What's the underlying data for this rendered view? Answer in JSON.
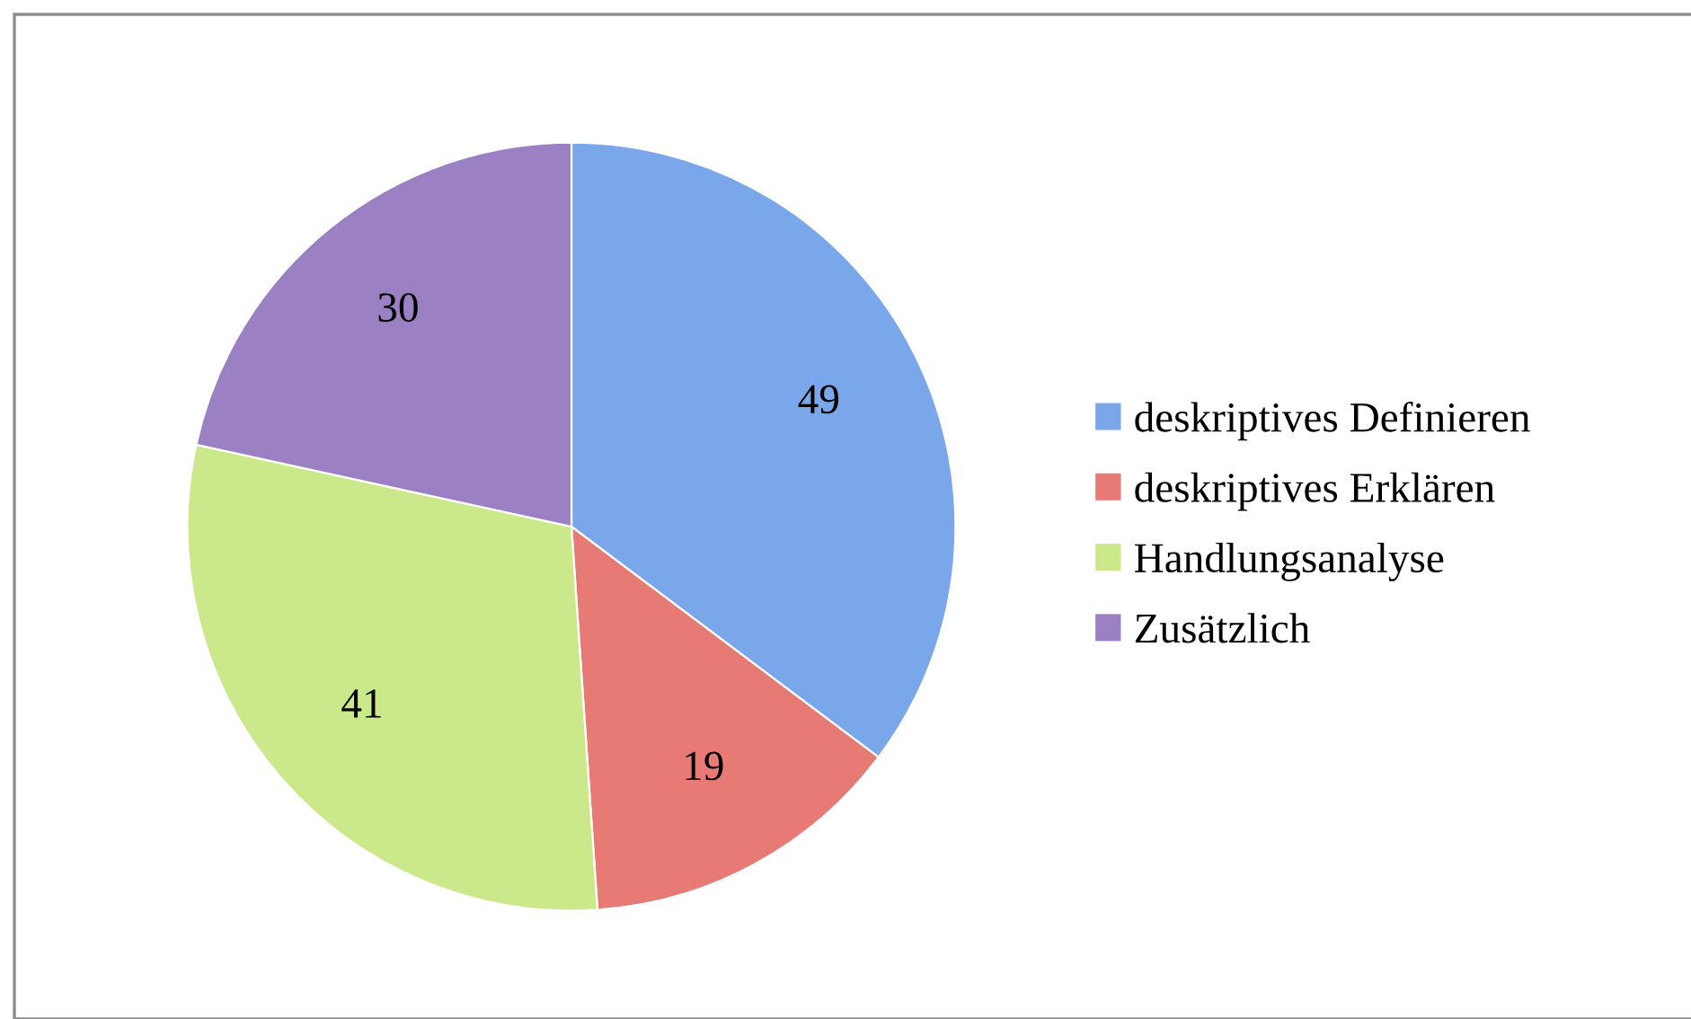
{
  "chart_data": {
    "type": "pie",
    "categories": [
      "deskriptives Definieren",
      "deskriptives Erklären",
      "Handlungsanalyse",
      "Zusätzlich"
    ],
    "values": [
      49,
      19,
      41,
      30
    ],
    "colors": [
      "#7aa7ea",
      "#e87a76",
      "#cbe98a",
      "#9b80c4"
    ],
    "data_labels": true,
    "legend": "right"
  }
}
